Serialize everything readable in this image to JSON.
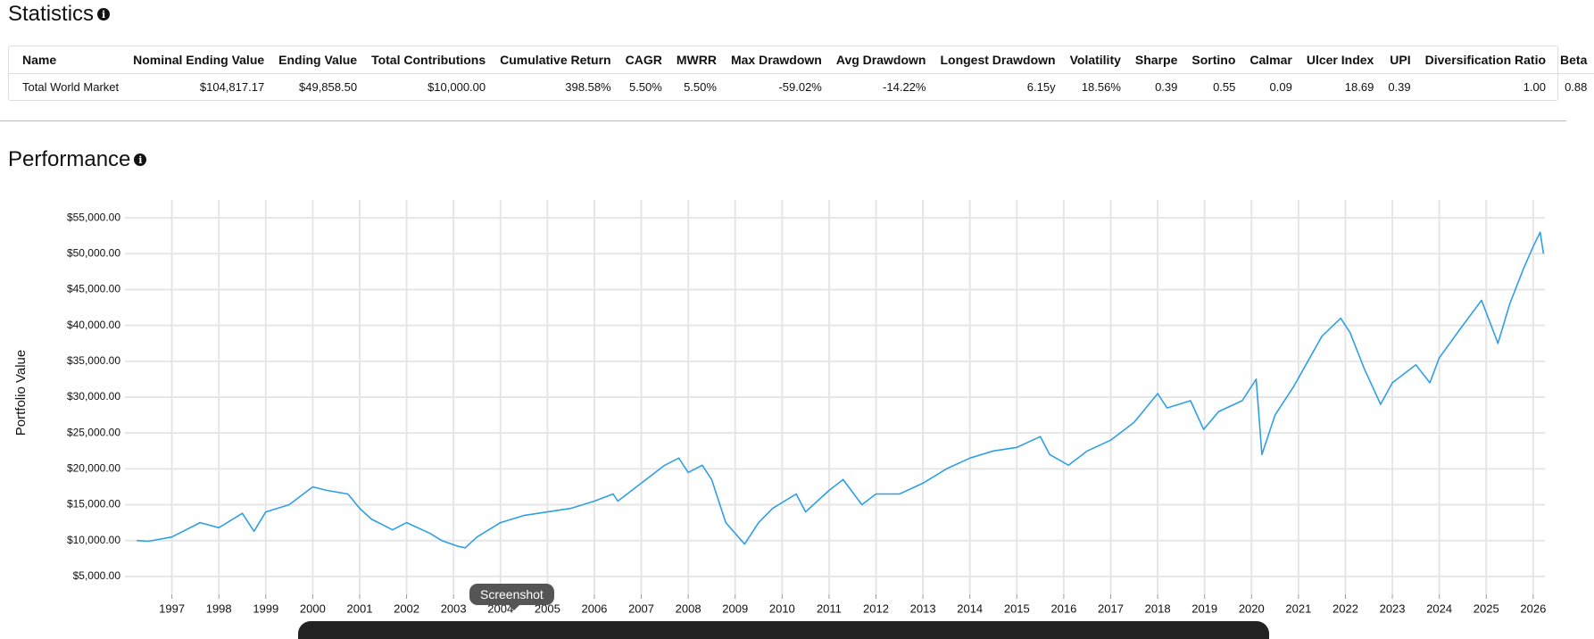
{
  "statistics": {
    "title": "Statistics",
    "columns": [
      "Name",
      "Nominal Ending Value",
      "Ending Value",
      "Total Contributions",
      "Cumulative Return",
      "CAGR",
      "MWRR",
      "Max Drawdown",
      "Avg Drawdown",
      "Longest Drawdown",
      "Volatility",
      "Sharpe",
      "Sortino",
      "Calmar",
      "Ulcer Index",
      "UPI",
      "Diversification Ratio",
      "Beta"
    ],
    "rows": [
      [
        "Total World Market",
        "$104,817.17",
        "$49,858.50",
        "$10,000.00",
        "398.58%",
        "5.50%",
        "5.50%",
        "-59.02%",
        "-14.22%",
        "6.15y",
        "18.56%",
        "0.39",
        "0.55",
        "0.09",
        "18.69",
        "0.39",
        "1.00",
        "0.88"
      ]
    ]
  },
  "performance": {
    "title": "Performance"
  },
  "chart_data": {
    "type": "line",
    "y_label": "Portfolio Value",
    "x": [
      1996.25,
      1996.5,
      1997.0,
      1997.6,
      1998.0,
      1998.5,
      1998.75,
      1999.0,
      1999.5,
      2000.0,
      2000.3,
      2000.75,
      2001.0,
      2001.25,
      2001.7,
      2002.0,
      2002.5,
      2002.75,
      2003.1,
      2003.25,
      2003.5,
      2004.0,
      2004.5,
      2005.0,
      2005.5,
      2006.0,
      2006.4,
      2006.5,
      2007.0,
      2007.5,
      2007.8,
      2008.0,
      2008.3,
      2008.5,
      2008.8,
      2009.2,
      2009.5,
      2009.8,
      2010.3,
      2010.5,
      2011.0,
      2011.3,
      2011.7,
      2012.0,
      2012.5,
      2013.0,
      2013.5,
      2014.0,
      2014.5,
      2015.0,
      2015.5,
      2015.7,
      2016.1,
      2016.5,
      2017.0,
      2017.5,
      2018.0,
      2018.2,
      2018.7,
      2018.98,
      2019.3,
      2019.8,
      2020.1,
      2020.22,
      2020.5,
      2020.9,
      2021.2,
      2021.5,
      2021.9,
      2022.1,
      2022.4,
      2022.75,
      2023.0,
      2023.5,
      2023.8,
      2024.0,
      2024.5,
      2024.9,
      2025.25,
      2025.5,
      2025.8,
      2026.0,
      2026.15,
      2026.22
    ],
    "series": [
      {
        "name": "Total World Market",
        "color": "#2f9fe6",
        "values": [
          10000,
          9900,
          10500,
          12500,
          11800,
          13800,
          11300,
          14000,
          15000,
          17500,
          17000,
          16500,
          14500,
          13000,
          11500,
          12500,
          11000,
          10000,
          9200,
          9000,
          10500,
          12500,
          13500,
          14000,
          14500,
          15500,
          16500,
          15500,
          18000,
          20500,
          21500,
          19500,
          20500,
          18500,
          12500,
          9500,
          12500,
          14500,
          16500,
          14000,
          17000,
          18500,
          15000,
          16500,
          16500,
          18000,
          20000,
          21500,
          22500,
          23000,
          24500,
          22000,
          20500,
          22500,
          24000,
          26500,
          30500,
          28500,
          29500,
          25500,
          28000,
          29500,
          32500,
          22000,
          27500,
          31500,
          35000,
          38500,
          41000,
          39000,
          34000,
          29000,
          32000,
          34500,
          32000,
          35500,
          40000,
          43500,
          37500,
          43000,
          48000,
          51000,
          53000,
          50000
        ]
      }
    ],
    "xlim": [
      1996.0,
      2026.25
    ],
    "xticks": [
      1997,
      1998,
      1999,
      2000,
      2001,
      2002,
      2003,
      2004,
      2005,
      2006,
      2007,
      2008,
      2009,
      2010,
      2011,
      2012,
      2013,
      2014,
      2015,
      2016,
      2017,
      2018,
      2019,
      2020,
      2021,
      2022,
      2023,
      2024,
      2025,
      2026
    ],
    "ylim": [
      2500,
      57500
    ],
    "yticks": [
      {
        "value": 5000,
        "label": "$5,000.00"
      },
      {
        "value": 10000,
        "label": "$10,000.00"
      },
      {
        "value": 15000,
        "label": "$15,000.00"
      },
      {
        "value": 20000,
        "label": "$20,000.00"
      },
      {
        "value": 25000,
        "label": "$25,000.00"
      },
      {
        "value": 30000,
        "label": "$30,000.00"
      },
      {
        "value": 35000,
        "label": "$35,000.00"
      },
      {
        "value": 40000,
        "label": "$40,000.00"
      },
      {
        "value": 45000,
        "label": "$45,000.00"
      },
      {
        "value": 50000,
        "label": "$50,000.00"
      },
      {
        "value": 55000,
        "label": "$55,000.00"
      }
    ],
    "grid": true
  },
  "overlay": {
    "tooltip": "Screenshot"
  }
}
